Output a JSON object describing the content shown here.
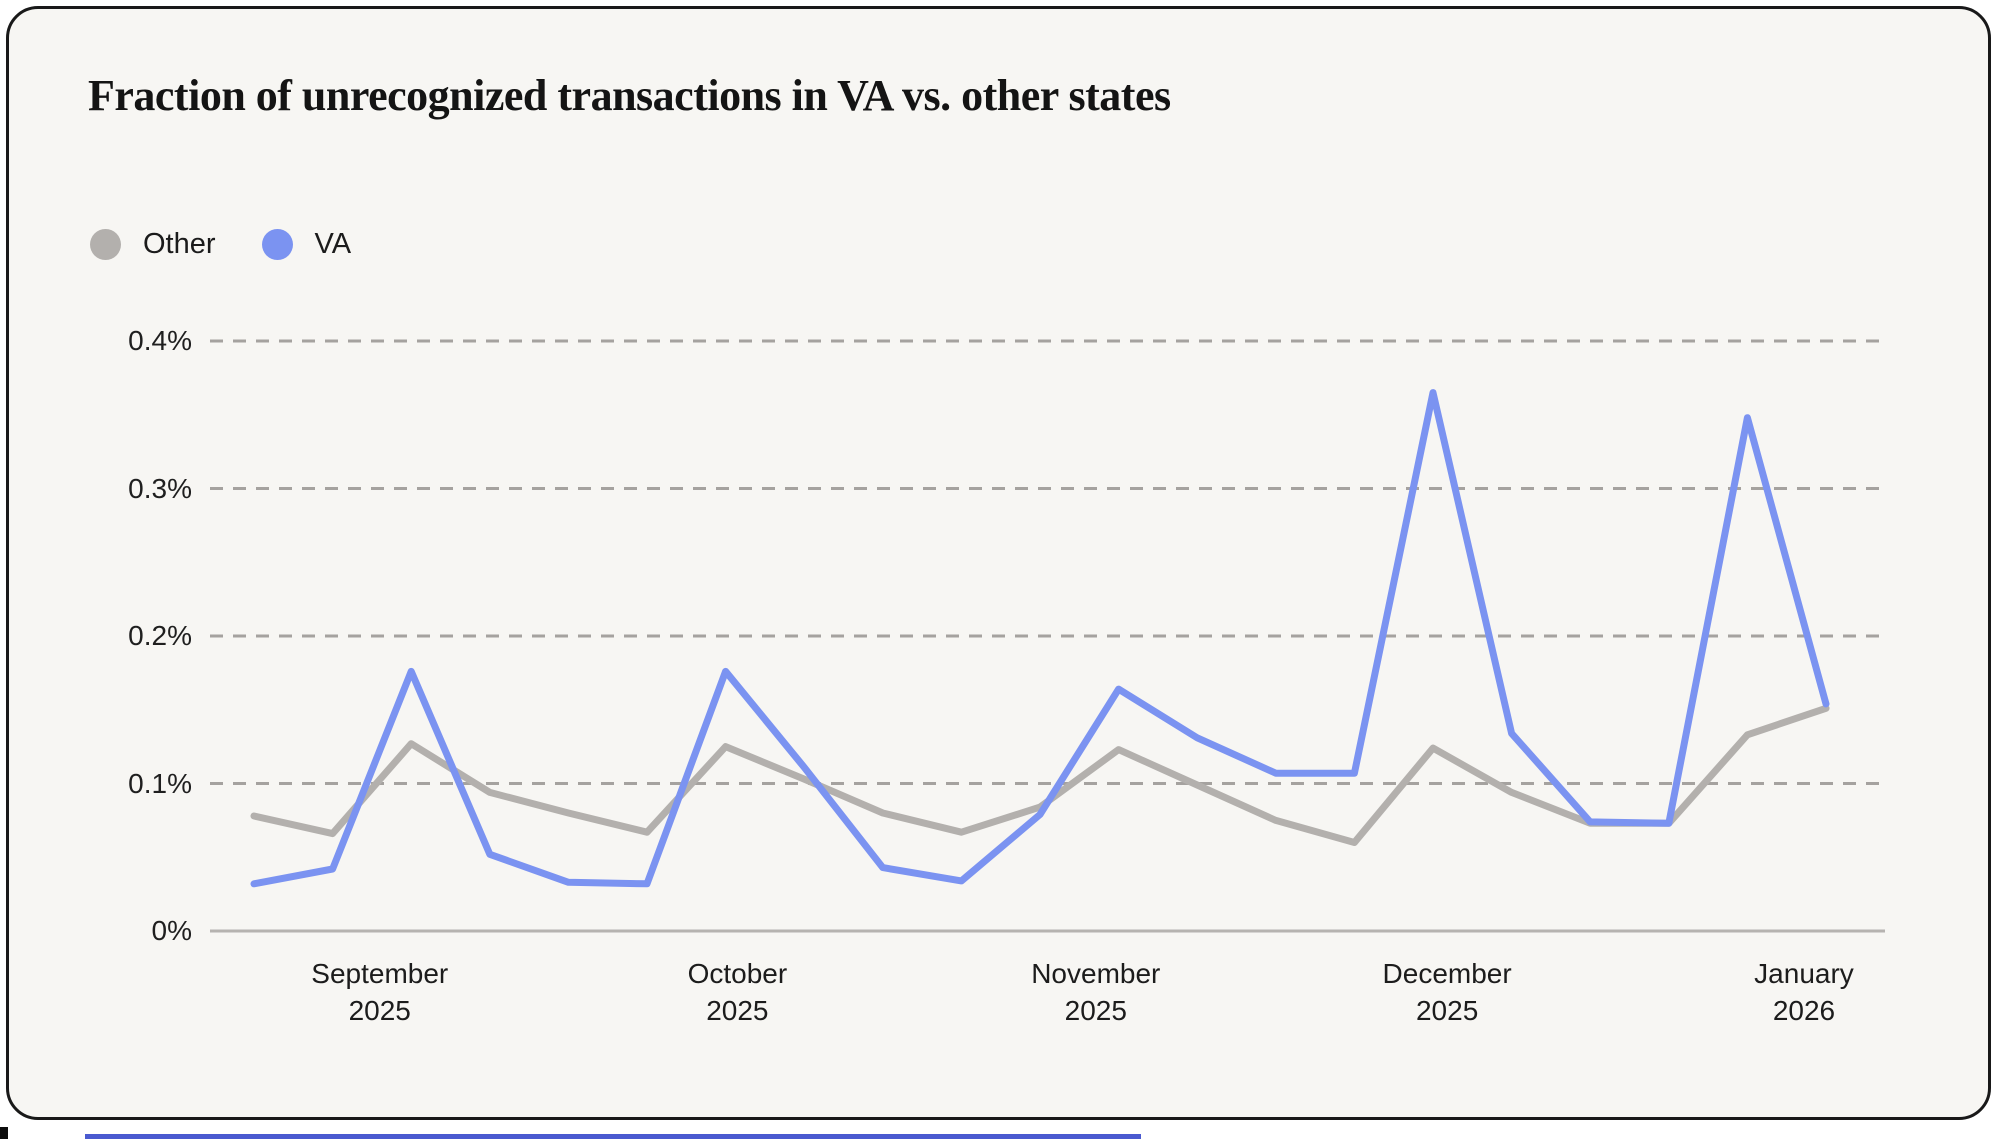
{
  "card": {
    "title": "Fraction of unrecognized transactions in VA vs. other states"
  },
  "chart_data": {
    "type": "line",
    "title": "Fraction of unrecognized transactions in VA vs. other states",
    "unit": "percent",
    "x": [
      0,
      1,
      2,
      3,
      4,
      5,
      6,
      7,
      8,
      9,
      10,
      11,
      12,
      13,
      14,
      15,
      16,
      17,
      18,
      19,
      20
    ],
    "x_interval": "weekly",
    "series": [
      {
        "name": "Other",
        "color": "#b3b0ad",
        "values": [
          0.078,
          0.066,
          0.127,
          0.094,
          0.08,
          0.067,
          0.125,
          0.103,
          0.08,
          0.067,
          0.084,
          0.123,
          0.099,
          0.075,
          0.06,
          0.124,
          0.094,
          0.073,
          0.073,
          0.133,
          0.151
        ]
      },
      {
        "name": "VA",
        "color": "#7b93f1",
        "values": [
          0.032,
          0.042,
          0.176,
          0.052,
          0.033,
          0.032,
          0.176,
          0.111,
          0.043,
          0.034,
          0.079,
          0.164,
          0.131,
          0.107,
          0.107,
          0.365,
          0.134,
          0.074,
          0.073,
          0.348,
          0.154
        ]
      }
    ],
    "y_ticks": [
      {
        "value": 0.0,
        "label": "0%"
      },
      {
        "value": 0.1,
        "label": "0.1%"
      },
      {
        "value": 0.2,
        "label": "0.2%"
      },
      {
        "value": 0.3,
        "label": "0.3%"
      },
      {
        "value": 0.4,
        "label": "0.4%"
      }
    ],
    "ylim": [
      0,
      0.43
    ],
    "x_month_ticks": [
      {
        "pos": 1.6,
        "line1": "September",
        "line2": "2025"
      },
      {
        "pos": 6.15,
        "line1": "October",
        "line2": "2025"
      },
      {
        "pos": 10.71,
        "line1": "November",
        "line2": "2025"
      },
      {
        "pos": 15.18,
        "line1": "December",
        "line2": "2025"
      },
      {
        "pos": 19.72,
        "line1": "January",
        "line2": "2026"
      }
    ],
    "grid": "horizontal-dashed",
    "legend_position": "top-left",
    "colors": {
      "background": "#f7f6f3",
      "grid_dash": "#a5a29f",
      "baseline": "#b6b3b0",
      "other_series": "#b3b0ad",
      "va_series": "#7b93f1"
    }
  },
  "decorations": {
    "bottom_strip_color": "#4a5ad0",
    "corner_notch_color": "#0c0c0c"
  }
}
